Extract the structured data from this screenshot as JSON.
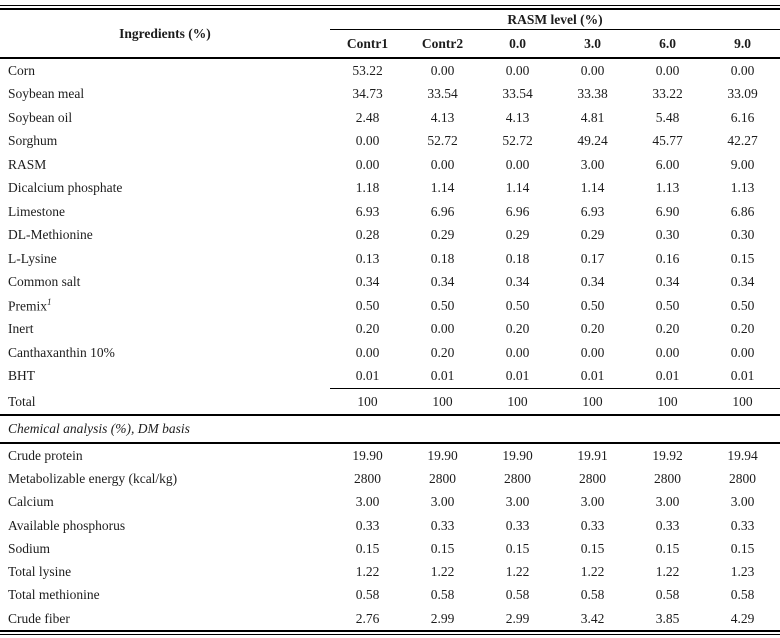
{
  "table": {
    "header": {
      "ingredients_label": "Ingredients (%)",
      "spanner": "RASM level (%)",
      "subcols": [
        "Contr1",
        "Contr2",
        "0.0",
        "3.0",
        "6.0",
        "9.0"
      ]
    },
    "ingredients_rows": [
      {
        "label": "Corn",
        "values": [
          "53.22",
          "0.00",
          "0.00",
          "0.00",
          "0.00",
          "0.00"
        ]
      },
      {
        "label": "Soybean meal",
        "values": [
          "34.73",
          "33.54",
          "33.54",
          "33.38",
          "33.22",
          "33.09"
        ]
      },
      {
        "label": "Soybean oil",
        "values": [
          "2.48",
          "4.13",
          "4.13",
          "4.81",
          "5.48",
          "6.16"
        ]
      },
      {
        "label": "Sorghum",
        "values": [
          "0.00",
          "52.72",
          "52.72",
          "49.24",
          "45.77",
          "42.27"
        ]
      },
      {
        "label": "RASM",
        "values": [
          "0.00",
          "0.00",
          "0.00",
          "3.00",
          "6.00",
          "9.00"
        ]
      },
      {
        "label": "Dicalcium phosphate",
        "values": [
          "1.18",
          "1.14",
          "1.14",
          "1.14",
          "1.13",
          "1.13"
        ]
      },
      {
        "label": "Limestone",
        "values": [
          "6.93",
          "6.96",
          "6.96",
          "6.93",
          "6.90",
          "6.86"
        ]
      },
      {
        "label": "DL-Methionine",
        "values": [
          "0.28",
          "0.29",
          "0.29",
          "0.29",
          "0.30",
          "0.30"
        ]
      },
      {
        "label": "L-Lysine",
        "values": [
          "0.13",
          "0.18",
          "0.18",
          "0.17",
          "0.16",
          "0.15"
        ]
      },
      {
        "label": "Common salt",
        "values": [
          "0.34",
          "0.34",
          "0.34",
          "0.34",
          "0.34",
          "0.34"
        ]
      },
      {
        "label": "Premix",
        "sup": "1",
        "values": [
          "0.50",
          "0.50",
          "0.50",
          "0.50",
          "0.50",
          "0.50"
        ]
      },
      {
        "label": "Inert",
        "values": [
          "0.20",
          "0.00",
          "0.20",
          "0.20",
          "0.20",
          "0.20"
        ]
      },
      {
        "label": "Canthaxanthin 10%",
        "values": [
          "0.00",
          "0.20",
          "0.00",
          "0.00",
          "0.00",
          "0.00"
        ]
      },
      {
        "label": "BHT",
        "values": [
          "0.01",
          "0.01",
          "0.01",
          "0.01",
          "0.01",
          "0.01"
        ]
      }
    ],
    "total_row": {
      "label": "Total",
      "values": [
        "100",
        "100",
        "100",
        "100",
        "100",
        "100"
      ]
    },
    "section_title": "Chemical analysis (%), DM basis",
    "chemical_rows": [
      {
        "label": "Crude protein",
        "values": [
          "19.90",
          "19.90",
          "19.90",
          "19.91",
          "19.92",
          "19.94"
        ]
      },
      {
        "label": "Metabolizable energy (kcal/kg)",
        "values": [
          "2800",
          "2800",
          "2800",
          "2800",
          "2800",
          "2800"
        ]
      },
      {
        "label": "Calcium",
        "values": [
          "3.00",
          "3.00",
          "3.00",
          "3.00",
          "3.00",
          "3.00"
        ]
      },
      {
        "label": "Available phosphorus",
        "values": [
          "0.33",
          "0.33",
          "0.33",
          "0.33",
          "0.33",
          "0.33"
        ]
      },
      {
        "label": "Sodium",
        "values": [
          "0.15",
          "0.15",
          "0.15",
          "0.15",
          "0.15",
          "0.15"
        ]
      },
      {
        "label": "Total lysine",
        "values": [
          "1.22",
          "1.22",
          "1.22",
          "1.22",
          "1.22",
          "1.23"
        ]
      },
      {
        "label": "Total methionine",
        "values": [
          "0.58",
          "0.58",
          "0.58",
          "0.58",
          "0.58",
          "0.58"
        ]
      },
      {
        "label": "Crude fiber",
        "values": [
          "2.76",
          "2.99",
          "2.99",
          "3.42",
          "3.85",
          "4.29"
        ]
      }
    ]
  }
}
